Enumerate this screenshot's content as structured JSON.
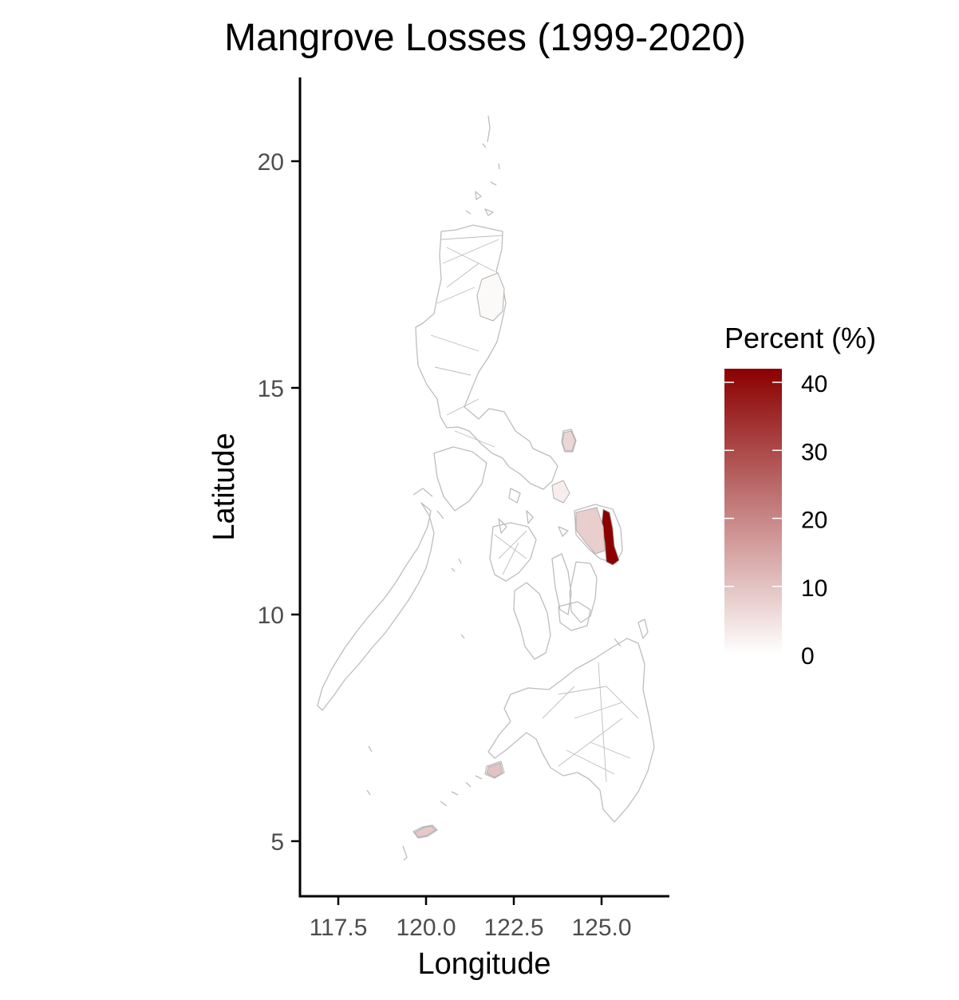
{
  "title": "Mangrove Losses (1999-2020)",
  "x_axis": {
    "label": "Longitude",
    "range": [
      116.4,
      127.2
    ],
    "ticks": [
      117.5,
      120.0,
      122.5,
      125.0
    ],
    "tick_labels": [
      "117.5",
      "120.0",
      "122.5",
      "125.0"
    ]
  },
  "y_axis": {
    "label": "Latitude",
    "range": [
      3.8,
      21.8
    ],
    "ticks": [
      5,
      10,
      15,
      20
    ],
    "tick_labels": [
      "5",
      "10",
      "15",
      "20"
    ]
  },
  "legend": {
    "title": "Percent (%)",
    "position": "right",
    "min": 0,
    "max": 42,
    "ticks": [
      0,
      10,
      20,
      30,
      40
    ],
    "tick_labels": [
      "0",
      "10",
      "20",
      "30",
      "40"
    ],
    "color_low": "#ffffff",
    "color_high": "#8b0000"
  },
  "colors": {
    "boundary": "#bdbdbd",
    "axis": "#000000",
    "tick_label": "#4d4d4d"
  },
  "chart_data": {
    "type": "choropleth",
    "highlighted_regions": [
      {
        "lon": 125.3,
        "lat": 11.6,
        "percent": 42
      },
      {
        "lon": 124.8,
        "lat": 11.7,
        "percent": 8
      },
      {
        "lon": 124.1,
        "lat": 12.6,
        "percent": 3
      },
      {
        "lon": 124.2,
        "lat": 13.7,
        "percent": 7
      },
      {
        "lon": 121.2,
        "lat": 5.2,
        "percent": 9
      },
      {
        "lon": 122.1,
        "lat": 6.55,
        "percent": 10
      },
      {
        "lon": 122.5,
        "lat": 17.0,
        "percent": 1
      }
    ]
  }
}
